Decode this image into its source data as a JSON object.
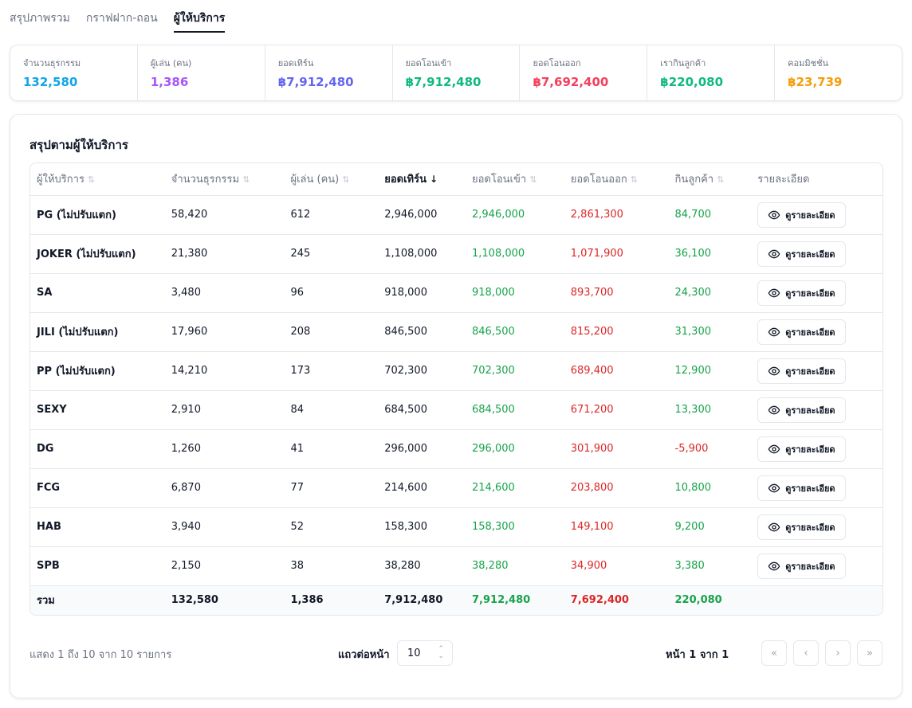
{
  "tabs": [
    {
      "label": "สรุปภาพรวม"
    },
    {
      "label": "กราฟฝาก-ถอน"
    },
    {
      "label": "ผู้ให้บริการ"
    }
  ],
  "stats": [
    {
      "label": "จำนวนธุรกรรม",
      "value": "132,580",
      "color": "#0ea5e9"
    },
    {
      "label": "ผู้เล่น (คน)",
      "value": "1,386",
      "color": "#a855f7"
    },
    {
      "label": "ยอดเทิร์น",
      "value": "฿7,912,480",
      "color": "#6366f1"
    },
    {
      "label": "ยอดโอนเข้า",
      "value": "฿7,912,480",
      "color": "#10b981"
    },
    {
      "label": "ยอดโอนออก",
      "value": "฿7,692,400",
      "color": "#f43f5e"
    },
    {
      "label": "เรากินลูกค้า",
      "value": "฿220,080",
      "color": "#10b981"
    },
    {
      "label": "คอมมิชชั่น",
      "value": "฿23,739",
      "color": "#f59e0b"
    }
  ],
  "card": {
    "title": "สรุปตามผู้ให้บริการ"
  },
  "columns": [
    "ผู้ให้บริการ",
    "จำนวนธุรกรรม",
    "ผู้เล่น (คน)",
    "ยอดเทิร์น",
    "ยอดโอนเข้า",
    "ยอดโอนออก",
    "กินลูกค้า",
    "รายละเอียด"
  ],
  "detail_label": "ดูรายละเอียด",
  "rows": [
    {
      "provider": "PG (ไม่ปรับแตก)",
      "txns": "58,420",
      "players": "612",
      "turnover": "2,946,000",
      "deposit": "2,946,000",
      "withdraw": "2,861,300",
      "profit": "84,700"
    },
    {
      "provider": "JOKER (ไม่ปรับแตก)",
      "txns": "21,380",
      "players": "245",
      "turnover": "1,108,000",
      "deposit": "1,108,000",
      "withdraw": "1,071,900",
      "profit": "36,100"
    },
    {
      "provider": "SA",
      "txns": "3,480",
      "players": "96",
      "turnover": "918,000",
      "deposit": "918,000",
      "withdraw": "893,700",
      "profit": "24,300"
    },
    {
      "provider": "JILI (ไม่ปรับแตก)",
      "txns": "17,960",
      "players": "208",
      "turnover": "846,500",
      "deposit": "846,500",
      "withdraw": "815,200",
      "profit": "31,300"
    },
    {
      "provider": "PP (ไม่ปรับแตก)",
      "txns": "14,210",
      "players": "173",
      "turnover": "702,300",
      "deposit": "702,300",
      "withdraw": "689,400",
      "profit": "12,900"
    },
    {
      "provider": "SEXY",
      "txns": "2,910",
      "players": "84",
      "turnover": "684,500",
      "deposit": "684,500",
      "withdraw": "671,200",
      "profit": "13,300"
    },
    {
      "provider": "DG",
      "txns": "1,260",
      "players": "41",
      "turnover": "296,000",
      "deposit": "296,000",
      "withdraw": "301,900",
      "profit": "-5,900"
    },
    {
      "provider": "FCG",
      "txns": "6,870",
      "players": "77",
      "turnover": "214,600",
      "deposit": "214,600",
      "withdraw": "203,800",
      "profit": "10,800"
    },
    {
      "provider": "HAB",
      "txns": "3,940",
      "players": "52",
      "turnover": "158,300",
      "deposit": "158,300",
      "withdraw": "149,100",
      "profit": "9,200"
    },
    {
      "provider": "SPB",
      "txns": "2,150",
      "players": "38",
      "turnover": "38,280",
      "deposit": "38,280",
      "withdraw": "34,900",
      "profit": "3,380"
    }
  ],
  "total": {
    "label": "รวม",
    "txns": "132,580",
    "players": "1,386",
    "turnover": "7,912,480",
    "deposit": "7,912,480",
    "withdraw": "7,692,400",
    "profit": "220,080"
  },
  "pagination": {
    "summary": "แสดง 1 ถึง 10 จาก 10 รายการ",
    "rows_label": "แถวต่อหน้า",
    "rows_value": "10",
    "page_info": "หน้า 1 จาก 1"
  },
  "colors": {
    "green": "#16a34a",
    "red": "#dc2626"
  }
}
